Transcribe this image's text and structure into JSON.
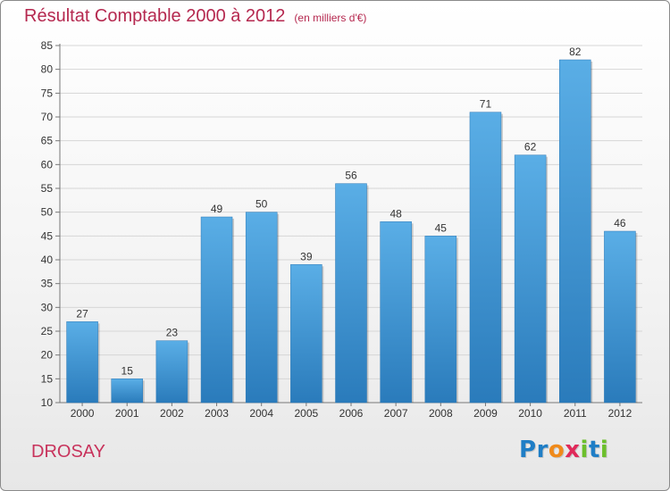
{
  "header": {
    "title": "Résultat Comptable 2000 à 2012",
    "subtitle": "(en milliers d'€)"
  },
  "footer": {
    "commune": "DROSAY",
    "logo_text": "Proxiti",
    "logo_letters": [
      "P",
      "r",
      "o",
      "x",
      "i",
      "t",
      "i"
    ],
    "logo_colors": [
      "#1f7ec6",
      "#1f7ec6",
      "#f08a1a",
      "#e02a5a",
      "#6cbf2c",
      "#1f7ec6",
      "#6cbf2c"
    ]
  },
  "chart_data": {
    "type": "bar",
    "categories": [
      "2000",
      "2001",
      "2002",
      "2003",
      "2004",
      "2005",
      "2006",
      "2007",
      "2008",
      "2009",
      "2010",
      "2011",
      "2012"
    ],
    "values": [
      27,
      15,
      23,
      49,
      50,
      39,
      56,
      48,
      45,
      71,
      62,
      82,
      46
    ],
    "title": "Résultat Comptable 2000 à 2012",
    "xlabel": "",
    "ylabel": "",
    "ylim": [
      10,
      85
    ],
    "yticks": [
      10,
      15,
      20,
      25,
      30,
      35,
      40,
      45,
      50,
      55,
      60,
      65,
      70,
      75,
      80,
      85
    ],
    "grid": true,
    "bar_color_top": "#5aaee6",
    "bar_color_bottom": "#2a7bbb"
  }
}
